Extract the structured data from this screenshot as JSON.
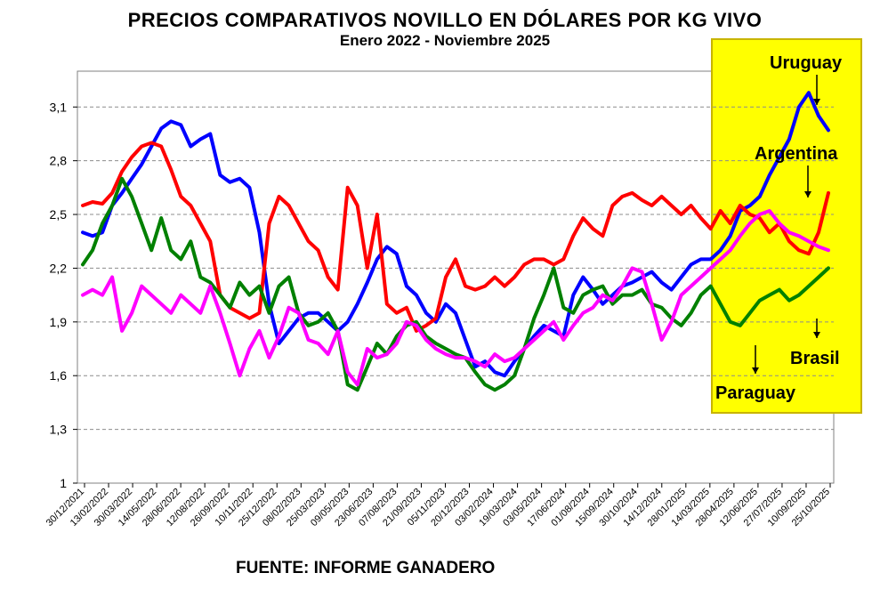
{
  "chart_data": {
    "type": "line",
    "title": "PRECIOS COMPARATIVOS NOVILLO EN DÓLARES POR KG  VIVO",
    "subtitle": "Enero  2022 -  Noviembre 2025",
    "source": "FUENTE: INFORME GANADERO",
    "ylim": [
      1,
      3.3
    ],
    "y_ticks": [
      "1",
      "1,3",
      "1,6",
      "1,9",
      "2,2",
      "2,5",
      "2,8",
      "3,1"
    ],
    "y_tick_values": [
      1,
      1.3,
      1.6,
      1.9,
      2.2,
      2.5,
      2.8,
      3.1
    ],
    "x_tick_labels": [
      "30/12/2021",
      "13/02/2022",
      "30/03/2022",
      "14/05/2022",
      "28/06/2022",
      "12/08/2022",
      "26/09/2022",
      "10/11/2022",
      "25/12/2022",
      "08/02/2023",
      "25/03/2023",
      "09/05/2023",
      "23/06/2023",
      "07/08/2023",
      "21/09/2023",
      "05/11/2023",
      "20/12/2023",
      "03/02/2024",
      "19/03/2024",
      "03/05/2024",
      "17/06/2024",
      "01/08/2024",
      "15/09/2024",
      "30/10/2024",
      "14/12/2024",
      "28/01/2025",
      "14/03/2025",
      "28/04/2025",
      "12/06/2025",
      "27/07/2025",
      "10/09/2025",
      "25/10/2025"
    ],
    "grid": true,
    "highlight_color": "#ffff00",
    "series": [
      {
        "name": "Uruguay",
        "color": "#0000ff",
        "values": [
          2.4,
          2.38,
          2.4,
          2.55,
          2.62,
          2.7,
          2.78,
          2.88,
          2.98,
          3.02,
          3.0,
          2.88,
          2.92,
          2.95,
          2.72,
          2.68,
          2.7,
          2.65,
          2.4,
          2.0,
          1.78,
          1.85,
          1.92,
          1.95,
          1.95,
          1.9,
          1.85,
          1.9,
          2.0,
          2.12,
          2.25,
          2.32,
          2.28,
          2.1,
          2.05,
          1.95,
          1.9,
          2.0,
          1.95,
          1.8,
          1.65,
          1.68,
          1.62,
          1.6,
          1.68,
          1.75,
          1.82,
          1.88,
          1.85,
          1.82,
          2.05,
          2.15,
          2.08,
          2.0,
          2.05,
          2.1,
          2.12,
          2.15,
          2.18,
          2.12,
          2.08,
          2.15,
          2.22,
          2.25,
          2.25,
          2.3,
          2.38,
          2.52,
          2.55,
          2.6,
          2.72,
          2.82,
          2.92,
          3.1,
          3.18,
          3.05,
          2.97
        ]
      },
      {
        "name": "Argentina",
        "color": "#ff0000",
        "values": [
          2.55,
          2.57,
          2.56,
          2.62,
          2.74,
          2.82,
          2.88,
          2.9,
          2.88,
          2.75,
          2.6,
          2.55,
          2.45,
          2.35,
          2.05,
          1.98,
          1.95,
          1.92,
          1.95,
          2.45,
          2.6,
          2.55,
          2.45,
          2.35,
          2.3,
          2.15,
          2.08,
          2.65,
          2.55,
          2.2,
          2.5,
          2.0,
          1.95,
          1.98,
          1.85,
          1.88,
          1.92,
          2.15,
          2.25,
          2.1,
          2.08,
          2.1,
          2.15,
          2.1,
          2.15,
          2.22,
          2.25,
          2.25,
          2.22,
          2.25,
          2.38,
          2.48,
          2.42,
          2.38,
          2.55,
          2.6,
          2.62,
          2.58,
          2.55,
          2.6,
          2.55,
          2.5,
          2.55,
          2.48,
          2.42,
          2.52,
          2.45,
          2.55,
          2.5,
          2.48,
          2.4,
          2.45,
          2.35,
          2.3,
          2.28,
          2.4,
          2.62
        ]
      },
      {
        "name": "Brasil",
        "color": "#008000",
        "values": [
          2.22,
          2.3,
          2.45,
          2.55,
          2.7,
          2.6,
          2.45,
          2.3,
          2.48,
          2.3,
          2.25,
          2.35,
          2.15,
          2.12,
          2.05,
          1.98,
          2.12,
          2.05,
          2.1,
          1.95,
          2.1,
          2.15,
          1.95,
          1.88,
          1.9,
          1.95,
          1.85,
          1.55,
          1.52,
          1.65,
          1.78,
          1.72,
          1.82,
          1.88,
          1.9,
          1.82,
          1.78,
          1.75,
          1.72,
          1.7,
          1.62,
          1.55,
          1.52,
          1.55,
          1.6,
          1.75,
          1.92,
          2.05,
          2.2,
          1.98,
          1.95,
          2.05,
          2.08,
          2.1,
          2.0,
          2.05,
          2.05,
          2.08,
          2.0,
          1.98,
          1.92,
          1.88,
          1.95,
          2.05,
          2.1,
          2.0,
          1.9,
          1.88,
          1.95,
          2.02,
          2.05,
          2.08,
          2.02,
          2.05,
          2.1,
          2.15,
          2.2
        ]
      },
      {
        "name": "Paraguay",
        "color": "#ff00ff",
        "values": [
          2.05,
          2.08,
          2.05,
          2.15,
          1.85,
          1.95,
          2.1,
          2.05,
          2.0,
          1.95,
          2.05,
          2.0,
          1.95,
          2.1,
          1.95,
          1.78,
          1.6,
          1.75,
          1.85,
          1.7,
          1.82,
          1.98,
          1.95,
          1.8,
          1.78,
          1.72,
          1.85,
          1.62,
          1.55,
          1.75,
          1.7,
          1.72,
          1.78,
          1.9,
          1.88,
          1.8,
          1.75,
          1.72,
          1.7,
          1.7,
          1.68,
          1.65,
          1.72,
          1.68,
          1.7,
          1.75,
          1.8,
          1.85,
          1.9,
          1.8,
          1.88,
          1.95,
          1.98,
          2.05,
          2.02,
          2.1,
          2.2,
          2.18,
          2.0,
          1.8,
          1.9,
          2.05,
          2.1,
          2.15,
          2.2,
          2.25,
          2.3,
          2.38,
          2.45,
          2.5,
          2.52,
          2.45,
          2.4,
          2.38,
          2.35,
          2.32,
          2.3
        ]
      }
    ],
    "annotations": [
      {
        "label": "Uruguay",
        "series": "Uruguay"
      },
      {
        "label": "Argentina",
        "series": "Argentina"
      },
      {
        "label": "Brasil",
        "series": "Brasil"
      },
      {
        "label": "Paraguay",
        "series": "Paraguay"
      }
    ]
  }
}
